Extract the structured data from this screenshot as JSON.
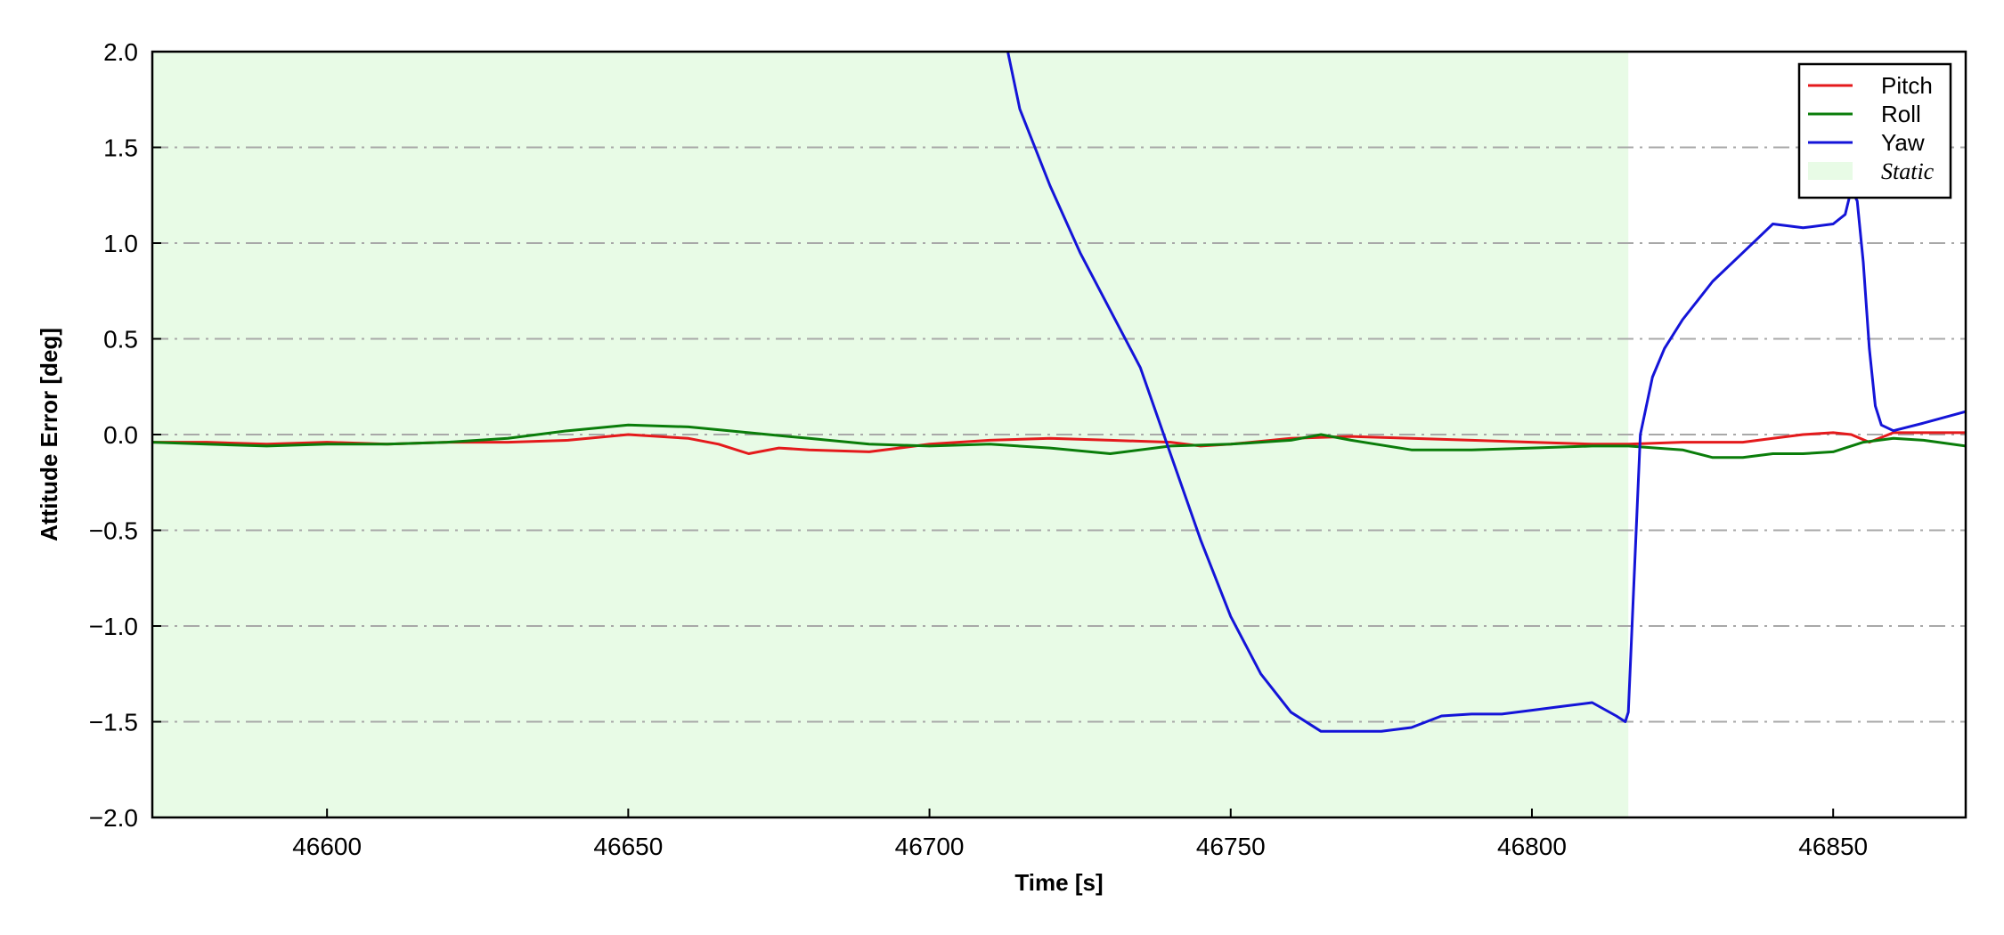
{
  "chart_data": {
    "type": "line",
    "title": "",
    "xlabel": "Time [s]",
    "ylabel": "Attitude Error [deg]",
    "xlim": [
      46571,
      46872
    ],
    "ylim": [
      -2.0,
      2.0
    ],
    "xticks": [
      46600,
      46650,
      46700,
      46750,
      46800,
      46850
    ],
    "yticks": [
      -2.0,
      -1.5,
      -1.0,
      -0.5,
      0.0,
      0.5,
      1.0,
      1.5,
      2.0
    ],
    "grid": "horizontal dash-dot",
    "legend_position": "top-right",
    "static_region": {
      "label": "Static",
      "x_start": 46571,
      "x_end": 46816,
      "color": "#e8fbe6"
    },
    "series": [
      {
        "name": "Pitch",
        "color": "#e41a1c",
        "x": [
          46571,
          46580,
          46590,
          46600,
          46610,
          46620,
          46630,
          46640,
          46650,
          46660,
          46665,
          46670,
          46675,
          46680,
          46690,
          46700,
          46710,
          46720,
          46730,
          46740,
          46745,
          46750,
          46760,
          46770,
          46780,
          46790,
          46800,
          46810,
          46816,
          46825,
          46835,
          46840,
          46845,
          46850,
          46853,
          46856,
          46860,
          46865,
          46872
        ],
        "y": [
          -0.04,
          -0.04,
          -0.05,
          -0.04,
          -0.05,
          -0.04,
          -0.04,
          -0.03,
          0.0,
          -0.02,
          -0.05,
          -0.1,
          -0.07,
          -0.08,
          -0.09,
          -0.05,
          -0.03,
          -0.02,
          -0.03,
          -0.04,
          -0.06,
          -0.05,
          -0.02,
          -0.01,
          -0.02,
          -0.03,
          -0.04,
          -0.05,
          -0.05,
          -0.04,
          -0.04,
          -0.02,
          0.0,
          0.01,
          0.0,
          -0.04,
          0.01,
          0.01,
          0.01
        ]
      },
      {
        "name": "Roll",
        "color": "#0a7d0a",
        "x": [
          46571,
          46580,
          46590,
          46600,
          46610,
          46620,
          46630,
          46640,
          46650,
          46660,
          46670,
          46680,
          46690,
          46700,
          46710,
          46720,
          46730,
          46740,
          46750,
          46760,
          46765,
          46770,
          46780,
          46790,
          46800,
          46810,
          46816,
          46825,
          46830,
          46835,
          46840,
          46845,
          46850,
          46855,
          46860,
          46865,
          46872
        ],
        "y": [
          -0.04,
          -0.05,
          -0.06,
          -0.05,
          -0.05,
          -0.04,
          -0.02,
          0.02,
          0.05,
          0.04,
          0.01,
          -0.02,
          -0.05,
          -0.06,
          -0.05,
          -0.07,
          -0.1,
          -0.06,
          -0.05,
          -0.03,
          0.0,
          -0.03,
          -0.08,
          -0.08,
          -0.07,
          -0.06,
          -0.06,
          -0.08,
          -0.12,
          -0.12,
          -0.1,
          -0.1,
          -0.09,
          -0.04,
          -0.02,
          -0.03,
          -0.06
        ]
      },
      {
        "name": "Yaw",
        "color": "#1414d8",
        "x": [
          46713,
          46715,
          46720,
          46725,
          46730,
          46735,
          46740,
          46745,
          46750,
          46755,
          46760,
          46765,
          46770,
          46775,
          46780,
          46785,
          46790,
          46795,
          46800,
          46805,
          46810,
          46814,
          46815.5,
          46816,
          46818,
          46820,
          46822,
          46825,
          46830,
          46835,
          46840,
          46845,
          46850,
          46852,
          46853,
          46854,
          46855,
          46856,
          46857,
          46858,
          46860,
          46865,
          46872
        ],
        "y": [
          2.0,
          1.7,
          1.3,
          0.95,
          0.65,
          0.35,
          -0.1,
          -0.55,
          -0.95,
          -1.25,
          -1.45,
          -1.55,
          -1.55,
          -1.55,
          -1.53,
          -1.47,
          -1.46,
          -1.46,
          -1.44,
          -1.42,
          -1.4,
          -1.47,
          -1.5,
          -1.45,
          0.0,
          0.3,
          0.45,
          0.6,
          0.8,
          0.95,
          1.1,
          1.08,
          1.1,
          1.15,
          1.28,
          1.22,
          0.9,
          0.45,
          0.15,
          0.05,
          0.02,
          0.06,
          0.12
        ]
      }
    ]
  }
}
